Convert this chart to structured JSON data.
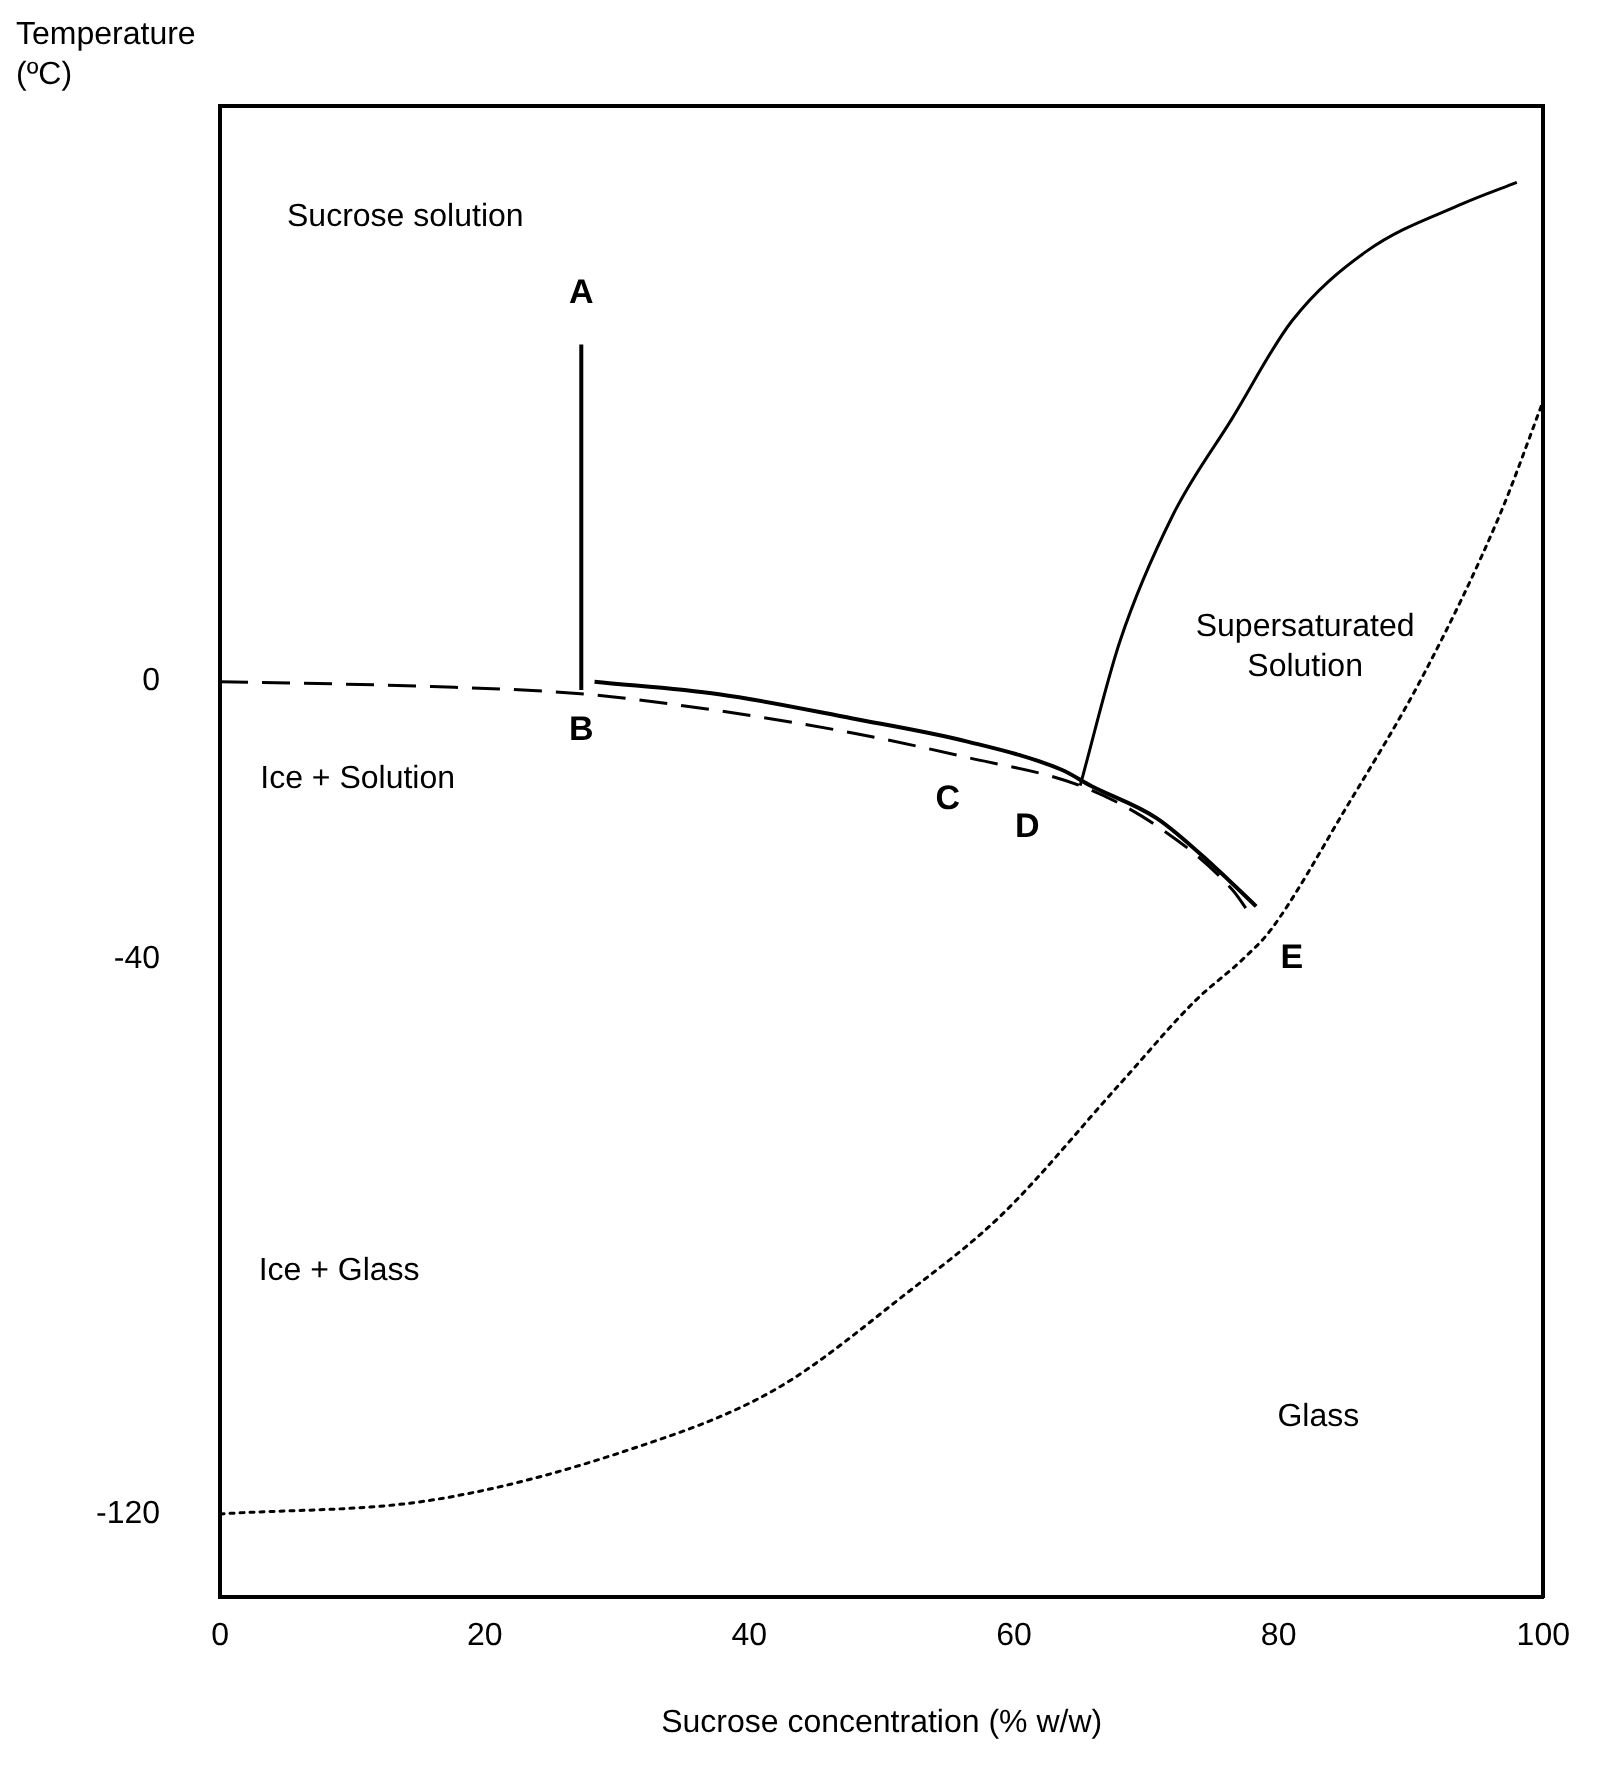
{
  "chart_data": {
    "type": "line",
    "xlabel": "Sucrose concentration (% w/w)",
    "ylabel": "Temperature\n(ºC)",
    "xlim": [
      0,
      100
    ],
    "xticks": [
      0,
      20,
      40,
      60,
      80,
      100
    ],
    "ylim": [
      -132,
      83
    ],
    "yticks": [
      0,
      -40,
      -120
    ],
    "grid": false,
    "legend": false,
    "marker": "none",
    "series": [
      {
        "color": "#000000",
        "line_style": "solid",
        "x": [
          65,
          68,
          72,
          76.5,
          81,
          86.6,
          94,
          98
        ],
        "values": [
          -15,
          5.8,
          24,
          38,
          52,
          62,
          69,
          72
        ]
      },
      {
        "color": "#000000",
        "line_style": "dashed",
        "x": [
          0,
          16,
          27.6,
          37.7,
          47.8,
          56.4,
          65,
          70.8,
          76.5,
          78
        ],
        "values": [
          0,
          -0.7,
          -1.8,
          -4.2,
          -7.4,
          -10.9,
          -15,
          -20.8,
          -30,
          -34
        ]
      },
      {
        "color": "#000000",
        "line_style": "dotted",
        "x": [
          0,
          16,
          30.5,
          42,
          52,
          59,
          68,
          73.7,
          77.3,
          79.4,
          85,
          91,
          96.7,
          100
        ],
        "values": [
          -120,
          -118,
          -111,
          -102,
          -88,
          -77,
          -58,
          -46,
          -40,
          -35.8,
          -18.5,
          1.2,
          24,
          40.5
        ]
      },
      {
        "color": "#000000",
        "line_style": "solid",
        "x": [
          27.3,
          27.3
        ],
        "values": [
          48.6,
          -1.2
        ]
      },
      {
        "color": "#000000",
        "line_style": "solid",
        "x": [
          28.3,
          37.7,
          47.8,
          56.4,
          63.6,
          65.8,
          70.8,
          75.1,
          78.3
        ],
        "values": [
          0,
          -1.8,
          -5.3,
          -8.6,
          -12.7,
          -15,
          -19.7,
          -26.6,
          -32.4
        ]
      }
    ],
    "annotations": [
      "A",
      "B",
      "C",
      "D",
      "E",
      "Sucrose solution",
      "Ice + Solution",
      "Supersaturated\nSolution",
      "Ice + Glass",
      "Glass"
    ]
  }
}
